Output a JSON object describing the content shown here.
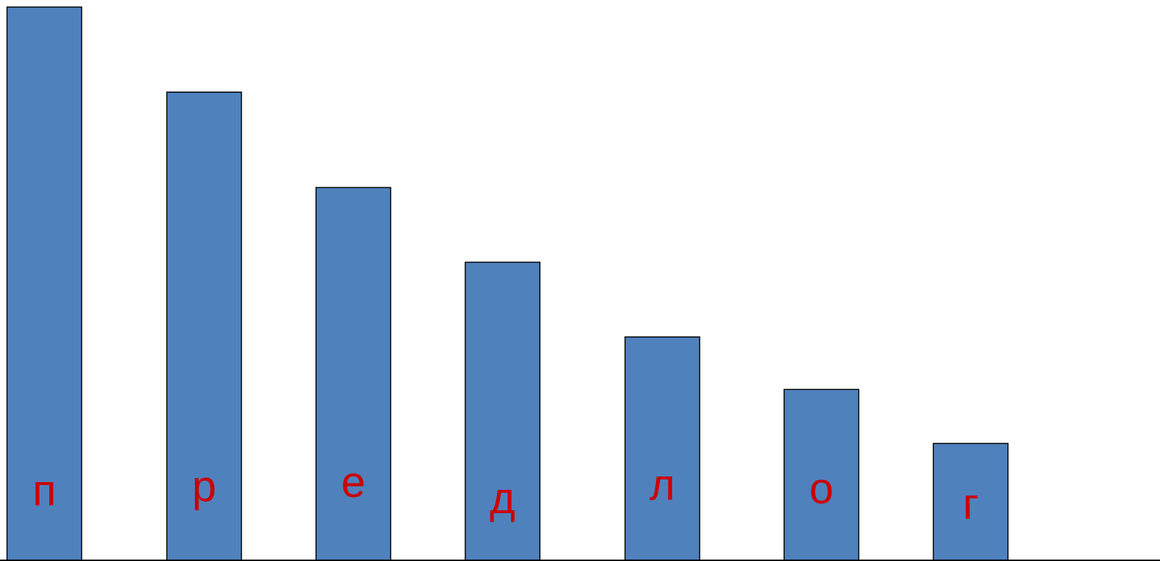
{
  "chart_data": {
    "type": "bar",
    "categories": [
      "п",
      "р",
      "е",
      "д",
      "л",
      "о",
      "г"
    ],
    "values": [
      748,
      633,
      504,
      403,
      302,
      231,
      158
    ],
    "ylim": [
      0,
      748
    ],
    "grid": false,
    "legend": "none",
    "bar_color": "#4F81BD",
    "label_color": "#CC0000",
    "outline_color": "#000000"
  }
}
